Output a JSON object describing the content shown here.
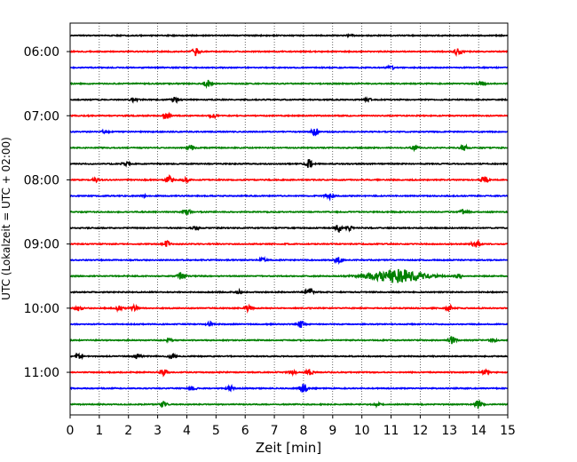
{
  "chart_data": {
    "type": "line",
    "xlabel": "Zeit  [min]",
    "ylabel": "UTC (Lokalzeit = UTC + 02:00)",
    "xlim": [
      0,
      15
    ],
    "x_ticks": [
      0,
      1,
      2,
      3,
      4,
      5,
      6,
      7,
      8,
      9,
      10,
      11,
      12,
      13,
      14,
      15
    ],
    "y_tick_labels": [
      "06:00",
      "07:00",
      "08:00",
      "09:00",
      "10:00",
      "11:00"
    ],
    "vertical_grid": true,
    "grid_style": "dotted",
    "trace_interval_minutes": 15,
    "trace_colors": [
      "#000000",
      "#ff0000",
      "#0000ff",
      "#008000"
    ],
    "traces": [
      {
        "start": "05:45",
        "events": [
          {
            "t": 9.6,
            "amp": 1.5
          }
        ]
      },
      {
        "start": "06:00",
        "events": [
          {
            "t": 4.3,
            "amp": 8
          },
          {
            "t": 13.3,
            "amp": 7
          }
        ]
      },
      {
        "start": "06:15",
        "events": [
          {
            "t": 11.0,
            "amp": 3.5
          }
        ]
      },
      {
        "start": "06:30",
        "events": [
          {
            "t": 4.7,
            "amp": 9
          },
          {
            "t": 14.1,
            "amp": 4
          }
        ]
      },
      {
        "start": "06:45",
        "events": [
          {
            "t": 2.2,
            "amp": 4
          },
          {
            "t": 3.6,
            "amp": 5
          },
          {
            "t": 10.2,
            "amp": 3
          }
        ]
      },
      {
        "start": "07:00",
        "events": [
          {
            "t": 3.3,
            "amp": 7
          },
          {
            "t": 4.9,
            "amp": 4
          }
        ]
      },
      {
        "start": "07:15",
        "events": [
          {
            "t": 8.4,
            "amp": 8
          },
          {
            "t": 1.2,
            "amp": 2.5
          }
        ]
      },
      {
        "start": "07:30",
        "events": [
          {
            "t": 4.1,
            "amp": 6
          },
          {
            "t": 11.8,
            "amp": 4
          },
          {
            "t": 13.5,
            "amp": 6
          }
        ]
      },
      {
        "start": "07:45",
        "events": [
          {
            "t": 1.9,
            "amp": 4
          },
          {
            "t": 8.2,
            "amp": 9
          }
        ]
      },
      {
        "start": "08:00",
        "events": [
          {
            "t": 0.9,
            "amp": 4
          },
          {
            "t": 3.4,
            "amp": 7
          },
          {
            "t": 4.0,
            "amp": 4
          },
          {
            "t": 14.2,
            "amp": 7
          }
        ]
      },
      {
        "start": "08:15",
        "events": [
          {
            "t": 8.9,
            "amp": 7
          },
          {
            "t": 2.5,
            "amp": 2
          }
        ]
      },
      {
        "start": "08:30",
        "events": [
          {
            "t": 4.0,
            "amp": 6
          },
          {
            "t": 13.5,
            "amp": 6
          }
        ]
      },
      {
        "start": "08:45",
        "events": [
          {
            "t": 4.3,
            "amp": 3
          },
          {
            "t": 9.2,
            "amp": 7
          },
          {
            "t": 9.6,
            "amp": 5
          }
        ]
      },
      {
        "start": "09:00",
        "events": [
          {
            "t": 3.3,
            "amp": 6
          },
          {
            "t": 13.9,
            "amp": 9
          }
        ]
      },
      {
        "start": "09:15",
        "events": [
          {
            "t": 6.6,
            "amp": 4
          },
          {
            "t": 9.2,
            "amp": 6
          }
        ]
      },
      {
        "start": "09:30",
        "events": [
          {
            "t": 3.8,
            "amp": 8
          },
          {
            "t": 11.2,
            "amp": 14
          },
          {
            "t": 13.3,
            "amp": 5
          }
        ]
      },
      {
        "start": "09:45",
        "events": [
          {
            "t": 5.8,
            "amp": 4
          },
          {
            "t": 8.2,
            "amp": 8
          }
        ]
      },
      {
        "start": "10:00",
        "events": [
          {
            "t": 0.3,
            "amp": 5
          },
          {
            "t": 1.7,
            "amp": 5
          },
          {
            "t": 2.2,
            "amp": 4
          },
          {
            "t": 6.1,
            "amp": 7
          },
          {
            "t": 13.0,
            "amp": 5
          }
        ]
      },
      {
        "start": "10:15",
        "events": [
          {
            "t": 4.8,
            "amp": 4
          },
          {
            "t": 7.9,
            "amp": 7
          }
        ]
      },
      {
        "start": "10:30",
        "events": [
          {
            "t": 3.4,
            "amp": 4
          },
          {
            "t": 13.1,
            "amp": 8
          },
          {
            "t": 14.5,
            "amp": 3
          }
        ]
      },
      {
        "start": "10:45",
        "events": [
          {
            "t": 0.3,
            "amp": 4
          },
          {
            "t": 2.3,
            "amp": 5
          },
          {
            "t": 3.5,
            "amp": 5
          }
        ]
      },
      {
        "start": "11:00",
        "events": [
          {
            "t": 3.2,
            "amp": 7
          },
          {
            "t": 7.6,
            "amp": 4
          },
          {
            "t": 8.2,
            "amp": 6
          },
          {
            "t": 14.2,
            "amp": 5
          }
        ]
      },
      {
        "start": "11:15",
        "events": [
          {
            "t": 4.2,
            "amp": 4
          },
          {
            "t": 5.5,
            "amp": 5
          },
          {
            "t": 8.0,
            "amp": 9
          }
        ]
      },
      {
        "start": "11:30",
        "events": [
          {
            "t": 3.2,
            "amp": 5
          },
          {
            "t": 10.5,
            "amp": 3
          },
          {
            "t": 14.0,
            "amp": 9
          }
        ]
      }
    ]
  }
}
